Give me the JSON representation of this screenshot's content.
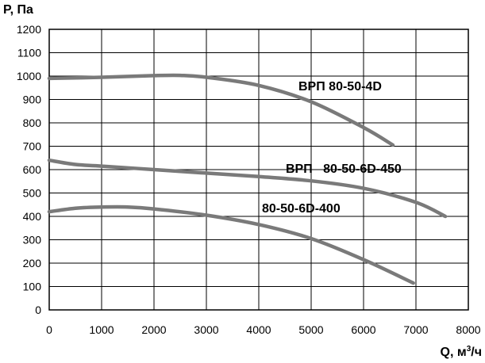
{
  "chart_data": {
    "type": "line",
    "title": "",
    "ylabel": "P, Па",
    "xlabel_prefix": "Q, м",
    "xlabel_sup": "3",
    "xlabel_suffix": "/ч",
    "xlim": [
      0,
      8000
    ],
    "ylim": [
      0,
      1200
    ],
    "xticks": [
      0,
      1000,
      2000,
      3000,
      4000,
      5000,
      6000,
      7000,
      8000
    ],
    "yticks": [
      0,
      100,
      200,
      300,
      400,
      500,
      600,
      700,
      800,
      900,
      1000,
      1100,
      1200
    ],
    "grid": true,
    "line_color": "#7a7a7a",
    "series": [
      {
        "name": "ВРП 80-50-4D",
        "x": [
          0,
          1000,
          2000,
          2500,
          3000,
          4000,
          5000,
          6000,
          6560
        ],
        "y": [
          990,
          995,
          1002,
          1003,
          995,
          960,
          890,
          780,
          705
        ]
      },
      {
        "name": "ВРП   80-50-6D-450",
        "x": [
          0,
          500,
          1000,
          2000,
          3000,
          4000,
          5000,
          6000,
          7000,
          7560
        ],
        "y": [
          640,
          622,
          615,
          600,
          585,
          570,
          552,
          520,
          460,
          400
        ]
      },
      {
        "name": "80-50-6D-400",
        "x": [
          0,
          500,
          1000,
          1500,
          2000,
          3000,
          4000,
          5000,
          6000,
          6950
        ],
        "y": [
          420,
          435,
          440,
          440,
          432,
          405,
          365,
          305,
          215,
          115
        ]
      }
    ]
  }
}
